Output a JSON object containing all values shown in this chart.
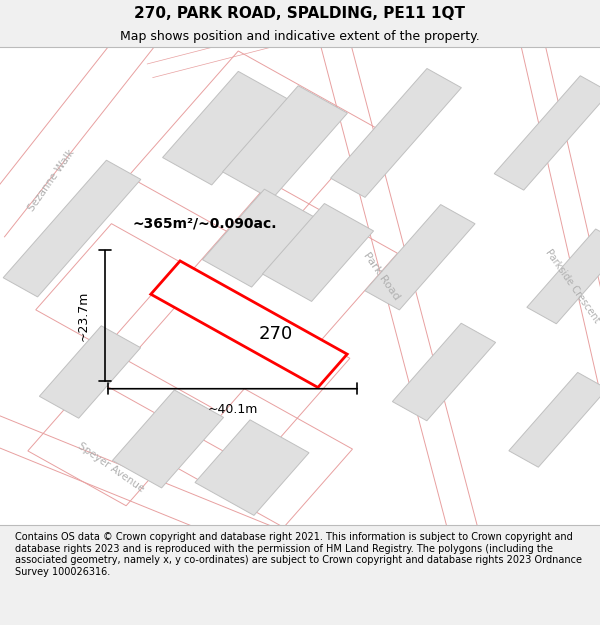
{
  "title": "270, PARK ROAD, SPALDING, PE11 1QT",
  "subtitle": "Map shows position and indicative extent of the property.",
  "footer": "Contains OS data © Crown copyright and database right 2021. This information is subject to Crown copyright and database rights 2023 and is reproduced with the permission of HM Land Registry. The polygons (including the associated geometry, namely x, y co-ordinates) are subject to Crown copyright and database rights 2023 Ordnance Survey 100026316.",
  "bg_color": "#f0f0f0",
  "map_bg": "#ffffff",
  "road_line_color": "#e8a0a0",
  "road_line_lw": 0.8,
  "parcel_line_color": "#e8a0a0",
  "parcel_line_lw": 0.6,
  "building_fill": "#e0e0e0",
  "building_edge": "#c0c0c0",
  "building_lw": 0.7,
  "highlight_fill": "#ffffff",
  "highlight_edge": "#ff0000",
  "highlight_lw": 2.0,
  "area_label": "~365m²/~0.090ac.",
  "number_label": "270",
  "dim_width": "~40.1m",
  "dim_height": "~23.7m",
  "road_label_color": "#b0b0b0",
  "title_fontsize": 11,
  "subtitle_fontsize": 9,
  "footer_fontsize": 7
}
